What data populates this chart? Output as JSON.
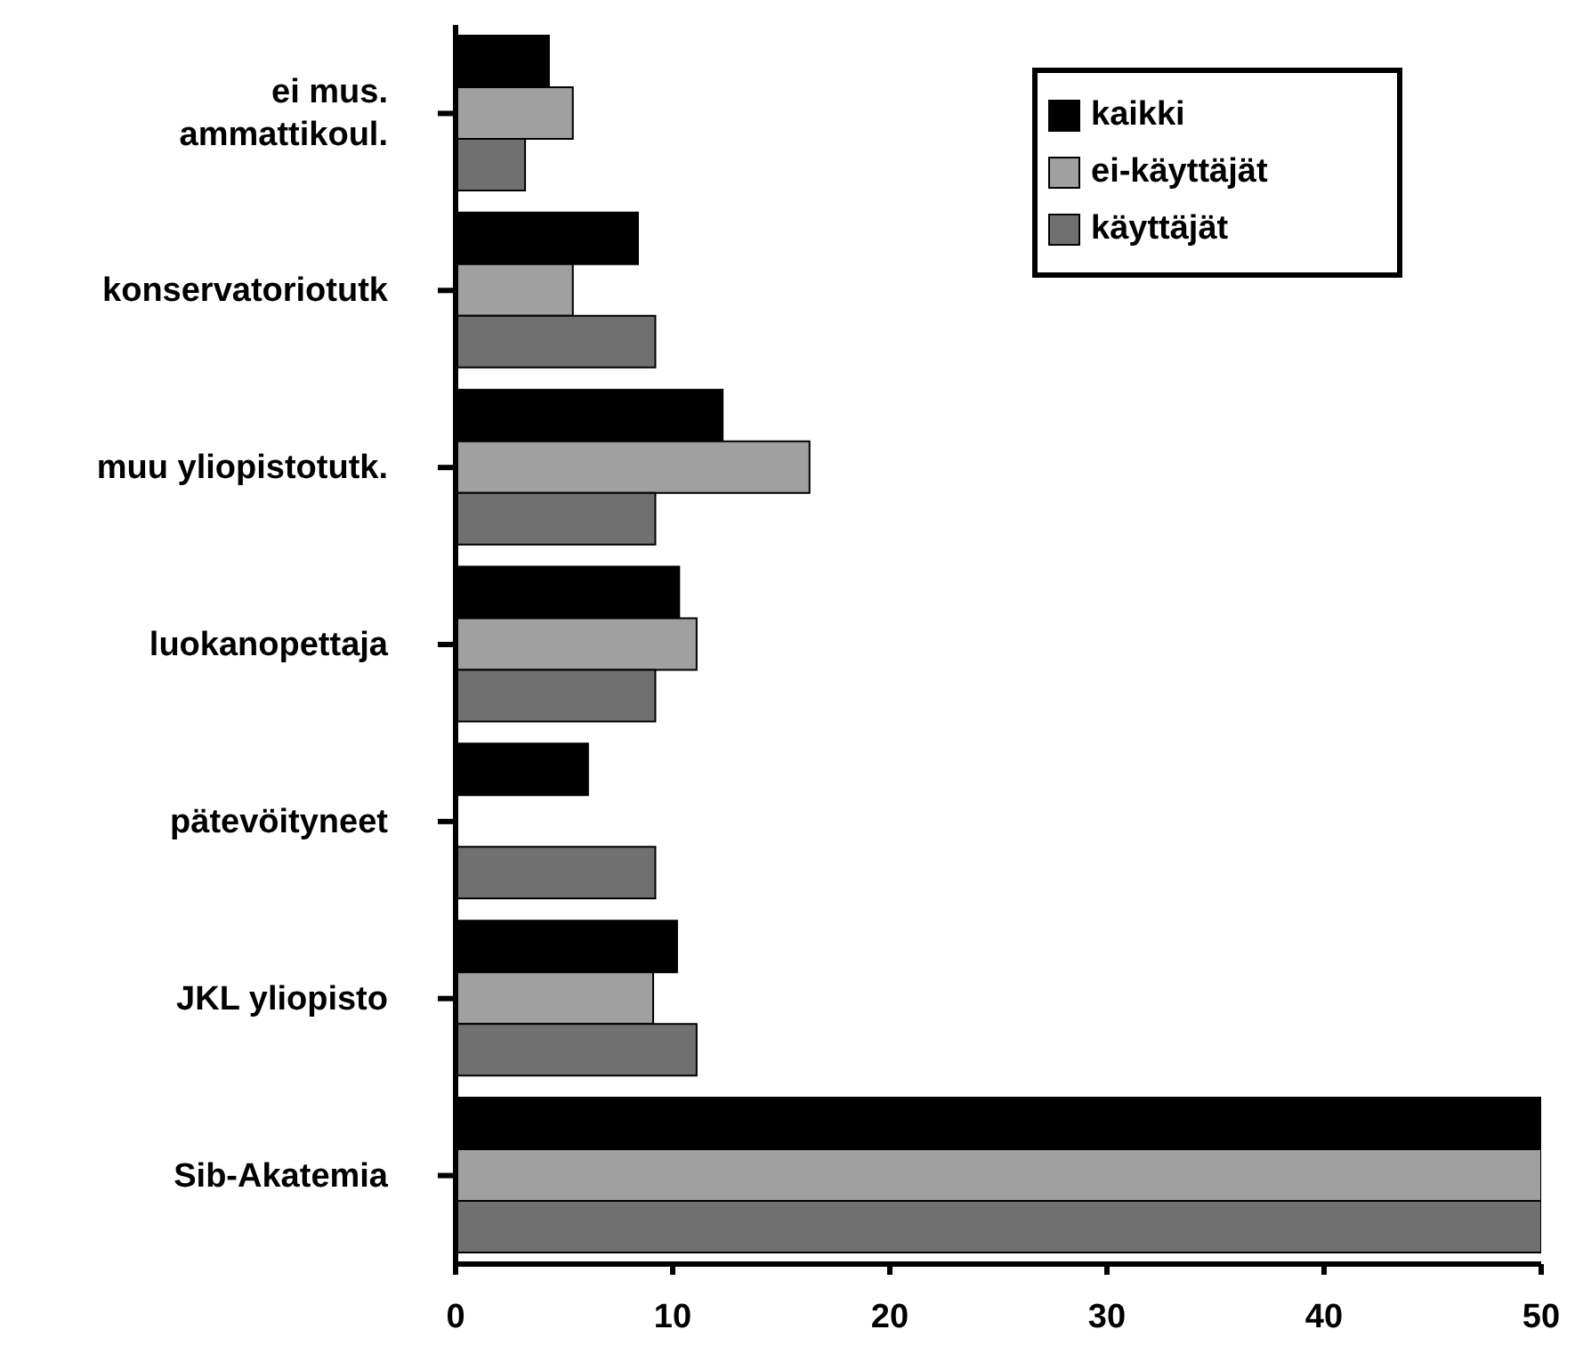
{
  "chart_data": {
    "type": "bar",
    "orientation": "horizontal",
    "categories": [
      "ei mus. ammattikoul.",
      "konservatoriotutk",
      "muu yliopistotutk.",
      "luokanopettaja",
      "pätevöityneet",
      "JKL yliopisto",
      "Sib-Akatemia"
    ],
    "series": [
      {
        "name": "kaikki",
        "color": "#000000",
        "values": [
          4.3,
          8.4,
          12.3,
          10.3,
          6.1,
          10.2,
          50
        ]
      },
      {
        "name": "ei-käyttäjät",
        "color": "#a0a0a0",
        "values": [
          5.4,
          5.4,
          16.3,
          11.1,
          0,
          9.1,
          50
        ]
      },
      {
        "name": "käyttäjät",
        "color": "#707070",
        "values": [
          3.2,
          9.2,
          9.2,
          9.2,
          9.2,
          11.1,
          50
        ]
      }
    ],
    "xlim": [
      0,
      50
    ],
    "xticks": [
      0,
      10,
      20,
      30,
      40,
      50
    ],
    "legend": "top right"
  }
}
